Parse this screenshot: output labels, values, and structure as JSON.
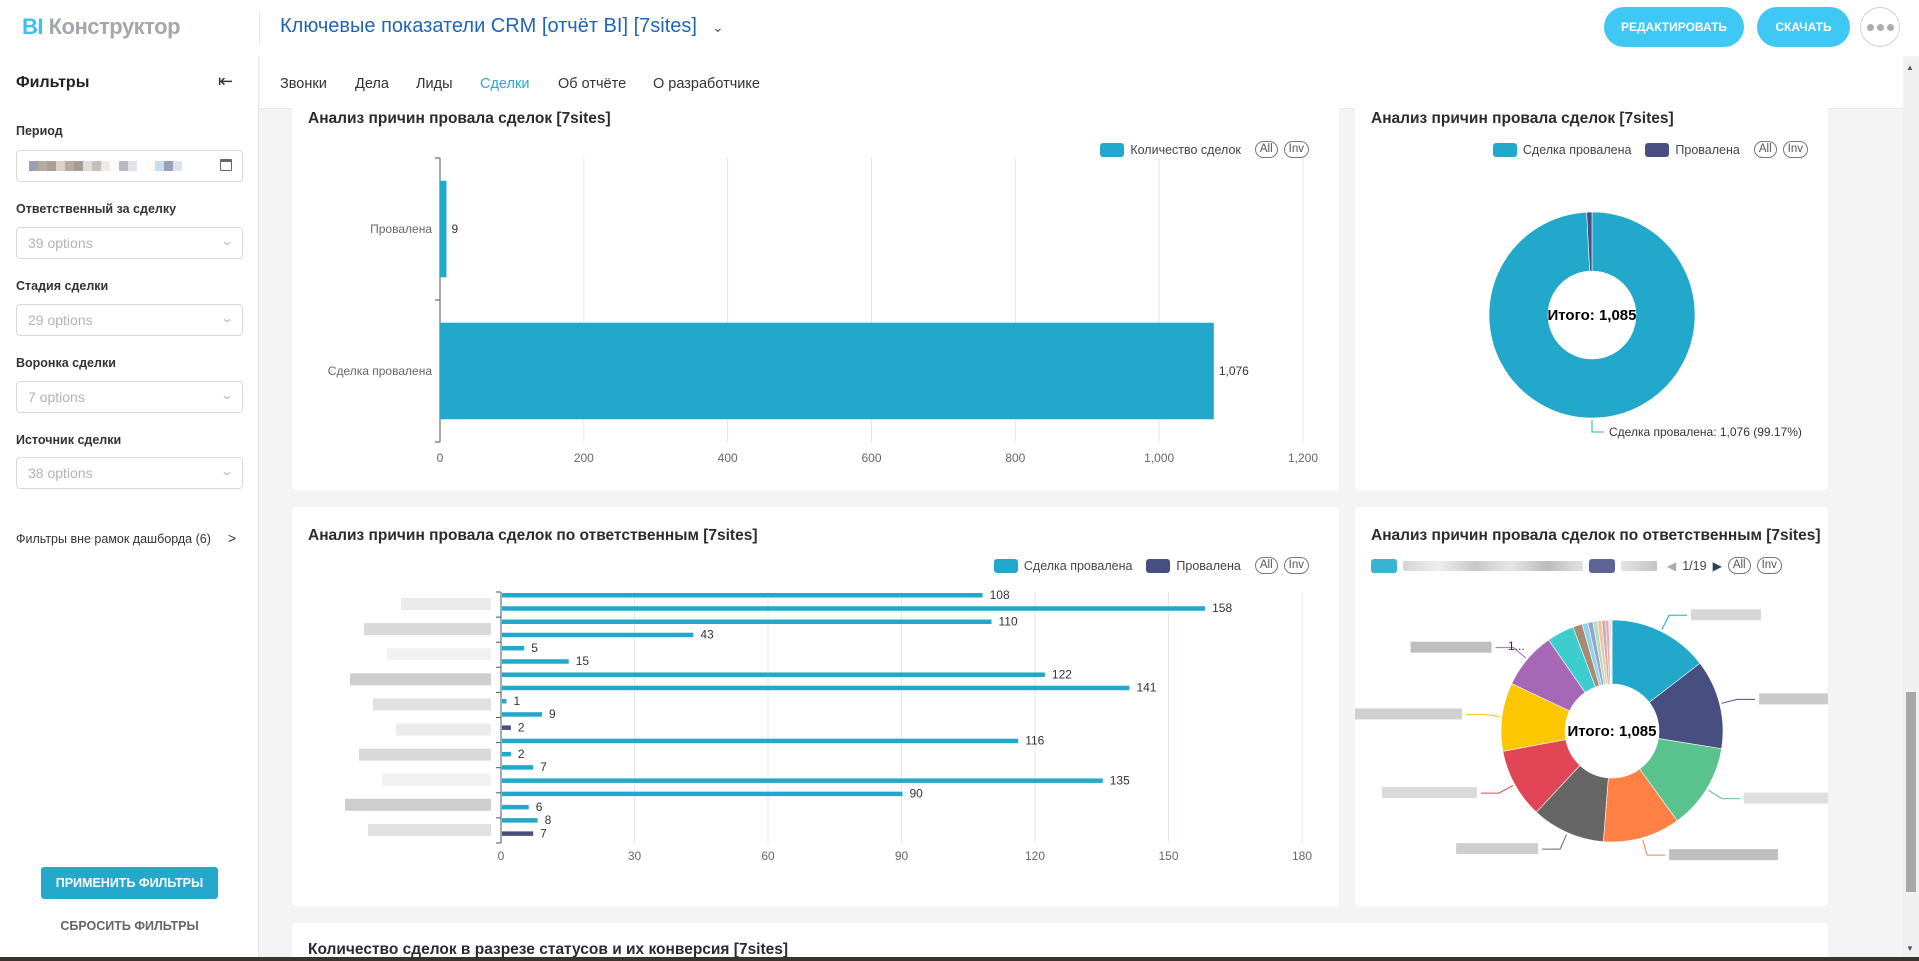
{
  "app": {
    "logo_bi": "BI",
    "logo_rest": "Конструктор",
    "report_title": "Ключевые показатели CRM [отчёт BI] [7sites]",
    "edit_label": "РЕДАКТИРОВАТЬ",
    "download_label": "СКАЧАТЬ"
  },
  "sidebar": {
    "title": "Фильтры",
    "filters": [
      {
        "label": "Период",
        "value": ""
      },
      {
        "label": "Ответственный за сделку",
        "placeholder": "39 options"
      },
      {
        "label": "Стадия сделки",
        "placeholder": "29 options"
      },
      {
        "label": "Воронка сделки",
        "placeholder": "7 options"
      },
      {
        "label": "Источник сделки",
        "placeholder": "38 options"
      }
    ],
    "outside_filters": "Фильтры вне рамок дашборда (6)",
    "apply_label": "ПРИМЕНИТЬ ФИЛЬТРЫ",
    "reset_label": "СБРОСИТЬ ФИЛЬТРЫ"
  },
  "tabs": [
    {
      "label": "Звонки"
    },
    {
      "label": "Дела"
    },
    {
      "label": "Лиды"
    },
    {
      "label": "Сделки",
      "active": true
    },
    {
      "label": "Об отчёте"
    },
    {
      "label": "О разработчике"
    }
  ],
  "legend_buttons": {
    "all": "All",
    "inv": "Inv"
  },
  "colors": {
    "primary": "#22a8cb",
    "secondary": "#464f7f"
  },
  "chart_data": [
    {
      "type": "bar",
      "orientation": "horizontal",
      "title": "Анализ причин провала сделок [7sites]",
      "legend": [
        "Количество сделок"
      ],
      "categories": [
        "Провалена",
        "Сделка провалена"
      ],
      "values": [
        9,
        1076
      ],
      "value_labels": [
        "9",
        "1,076"
      ],
      "xlim": [
        0,
        1200
      ],
      "xticks": [
        "0",
        "200",
        "400",
        "600",
        "800",
        "1,000",
        "1,200"
      ],
      "grid": true,
      "legend_position": "top-right"
    },
    {
      "type": "pie",
      "title": "Анализ причин провала сделок [7sites]",
      "legend": [
        "Сделка провалена",
        "Провалена"
      ],
      "labels": [
        "Сделка провалена",
        "Провалена"
      ],
      "values": [
        1076,
        9
      ],
      "colors": [
        "#22a8cb",
        "#464f7f"
      ],
      "center_label": "Итого: 1,085",
      "slice_label": "Сделка провалена: 1,076 (99.17%)",
      "legend_position": "top-right"
    },
    {
      "type": "bar",
      "orientation": "horizontal",
      "title": "Анализ причин провала сделок по ответственным [7sites]",
      "legend": [
        "Сделка провалена",
        "Провалена"
      ],
      "series": [
        {
          "name": "Сделка провалена",
          "values": [
            108,
            158,
            110,
            43,
            5,
            15,
            122,
            141,
            1,
            9,
            null,
            116,
            2,
            7,
            135,
            90,
            6,
            8,
            null
          ]
        },
        {
          "name": "Провалена",
          "values": [
            null,
            null,
            null,
            null,
            null,
            null,
            null,
            null,
            null,
            null,
            2,
            null,
            null,
            null,
            null,
            null,
            null,
            null,
            7
          ]
        }
      ],
      "xlim": [
        0,
        180
      ],
      "xticks": [
        "0",
        "30",
        "60",
        "90",
        "120",
        "150",
        "180"
      ],
      "grid": true,
      "legend_position": "top-right"
    },
    {
      "type": "pie",
      "title": "Анализ причин провала сделок по ответственным [7sites]",
      "center_label": "Итого: 1,085",
      "legend_page": "1/19",
      "values": [
        158,
        141,
        135,
        122,
        116,
        110,
        108,
        90,
        43,
        15,
        9,
        8,
        7,
        7,
        6,
        5,
        2,
        2,
        1
      ],
      "colors": [
        "#22a8cb",
        "#464f7f",
        "#5ac28c",
        "#ff8045",
        "#666666",
        "#e14656",
        "#fcc600",
        "#a667b6",
        "#3ecdce",
        "#a78a72",
        "#8fd3ea",
        "#9aa3c7",
        "#a9e0c2",
        "#ffbfa0",
        "#b5b5b5",
        "#f0a3ab",
        "#ffe38a",
        "#d7b3e0",
        "#b3ecec"
      ],
      "visible_label": "1...",
      "legend_position": "top"
    }
  ],
  "bottom_card": {
    "title": "Количество сделок в разрезе статусов и их конверсия [7sites]"
  }
}
